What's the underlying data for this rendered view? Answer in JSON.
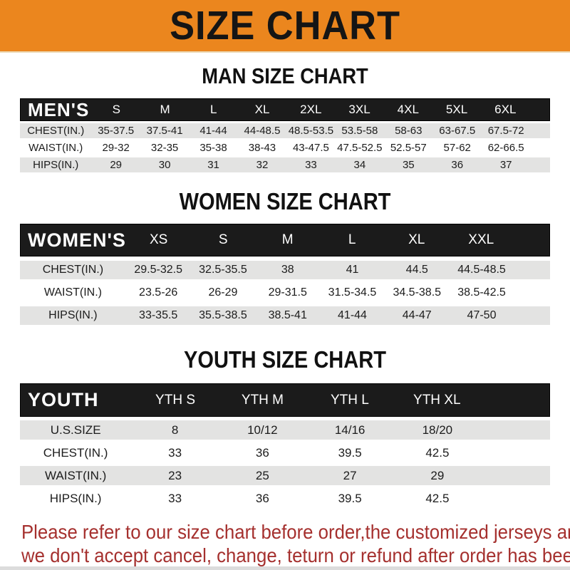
{
  "banner": {
    "title": "SIZE CHART"
  },
  "sections": [
    {
      "heading": "MAN SIZE CHART",
      "header_label": "MEN'S",
      "columns": [
        "S",
        "M",
        "L",
        "XL",
        "2XL",
        "3XL",
        "4XL",
        "5XL",
        "6XL"
      ],
      "rows": [
        {
          "label": "CHEST(IN.)",
          "values": [
            "35-37.5",
            "37.5-41",
            "41-44",
            "44-48.5",
            "48.5-53.5",
            "53.5-58",
            "58-63",
            "63-67.5",
            "67.5-72"
          ]
        },
        {
          "label": "WAIST(IN.)",
          "values": [
            "29-32",
            "32-35",
            "35-38",
            "38-43",
            "43-47.5",
            "47.5-52.5",
            "52.5-57",
            "57-62",
            "62-66.5"
          ]
        },
        {
          "label": "HIPS(IN.)",
          "values": [
            "29",
            "30",
            "31",
            "32",
            "33",
            "34",
            "35",
            "36",
            "37"
          ]
        }
      ]
    },
    {
      "heading": "WOMEN SIZE CHART",
      "header_label": "WOMEN'S",
      "columns": [
        "XS",
        "S",
        "M",
        "L",
        "XL",
        "XXL"
      ],
      "rows": [
        {
          "label": "CHEST(IN.)",
          "values": [
            "29.5-32.5",
            "32.5-35.5",
            "38",
            "41",
            "44.5",
            "44.5-48.5"
          ]
        },
        {
          "label": "WAIST(IN.)",
          "values": [
            "23.5-26",
            "26-29",
            "29-31.5",
            "31.5-34.5",
            "34.5-38.5",
            "38.5-42.5"
          ]
        },
        {
          "label": "HIPS(IN.)",
          "values": [
            "33-35.5",
            "35.5-38.5",
            "38.5-41",
            "41-44",
            "44-47",
            "47-50"
          ]
        }
      ]
    },
    {
      "heading": "YOUTH SIZE CHART",
      "header_label": "YOUTH",
      "columns": [
        "YTH S",
        "YTH M",
        "YTH L",
        "YTH XL"
      ],
      "rows": [
        {
          "label": "U.S.SIZE",
          "values": [
            "8",
            "10/12",
            "14/16",
            "18/20"
          ]
        },
        {
          "label": "CHEST(IN.)",
          "values": [
            "33",
            "36",
            "39.5",
            "42.5"
          ]
        },
        {
          "label": "WAIST(IN.)",
          "values": [
            "23",
            "25",
            "27",
            "29"
          ]
        },
        {
          "label": "HIPS(IN.)",
          "values": [
            "33",
            "36",
            "39.5",
            "42.5"
          ]
        }
      ]
    }
  ],
  "footer": {
    "line1": "Please refer to our size chart before order,the customized jerseys are special products,",
    "line2": "we don't accept cancel, change, teturn or refund after order has been placed!"
  },
  "colors": {
    "banner_bg": "#EB861E",
    "header_bg": "#1B1B1B",
    "row_alt_bg": "#E3E3E2",
    "footer_text": "#A5302E"
  }
}
